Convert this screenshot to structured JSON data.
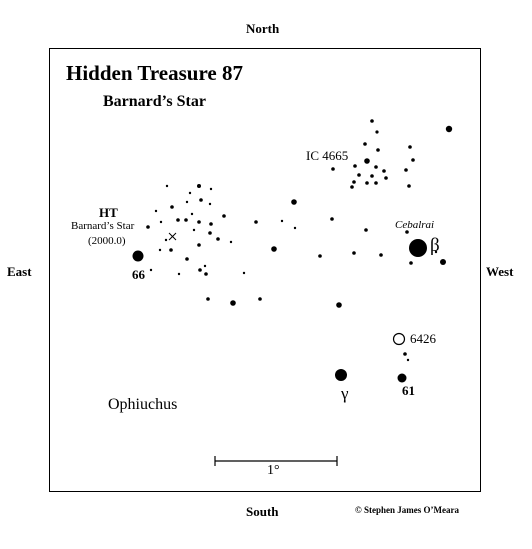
{
  "compass": {
    "north": "North",
    "south": "South",
    "east": "East",
    "west": "West"
  },
  "title": "Hidden Treasure 87",
  "subtitle": "Barnard’s Star",
  "labels": {
    "cluster": "IC 4665",
    "ht": "HT",
    "ht_name": "Barnard’s Star",
    "ht_epoch": "(2000.0)",
    "cebalrai": "Cebalrai",
    "beta": "β",
    "gamma": "γ",
    "star66": "66",
    "star61": "61",
    "ngc": "6426",
    "constellation": "Ophiuchus",
    "scale": "1°"
  },
  "credit": "© Stephen James O’Meara"
}
